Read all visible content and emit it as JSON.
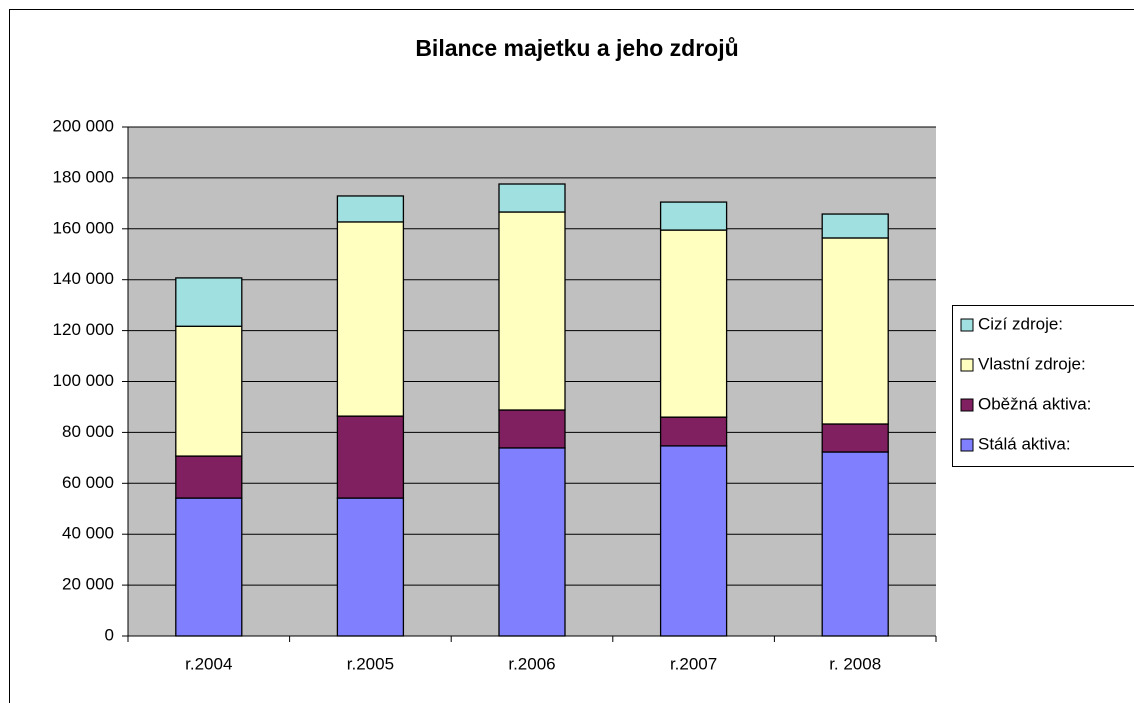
{
  "chart_data": {
    "type": "stacked_bar",
    "title": "Bilance majetku a jeho zdrojů",
    "categories": [
      "r.2004",
      "r.2005",
      "r.2006",
      "r.2007",
      "r. 2008"
    ],
    "series": [
      {
        "name": "Stálá aktiva:",
        "color": "#8080ff",
        "values": [
          54200,
          54200,
          73900,
          74700,
          72300
        ]
      },
      {
        "name": "Oběžná aktiva:",
        "color": "#802060",
        "values": [
          16500,
          32200,
          14900,
          11300,
          11000
        ]
      },
      {
        "name": "Vlastní zdroje:",
        "color": "#ffffc0",
        "values": [
          51000,
          76300,
          77800,
          73500,
          73100
        ]
      },
      {
        "name": "Cizí zdroje:",
        "color": "#a0e0e0",
        "values": [
          19000,
          10200,
          11000,
          11000,
          9400
        ]
      }
    ],
    "ylim": [
      0,
      200000
    ],
    "yticks": [
      0,
      {
        "value": 20000,
        "label": "20 000"
      },
      {
        "value": 40000,
        "label": "40 000"
      },
      {
        "value": 60000,
        "label": "60 000"
      },
      {
        "value": 80000,
        "label": "80 000"
      },
      {
        "value": 100000,
        "label": "100 000"
      },
      {
        "value": 120000,
        "label": "120 000"
      },
      {
        "value": 140000,
        "label": "140 000"
      },
      {
        "value": 160000,
        "label": "160 000"
      },
      {
        "value": 180000,
        "label": "180 000"
      },
      {
        "value": 200000,
        "label": "200 000"
      }
    ],
    "grid": true,
    "legend": "right"
  }
}
